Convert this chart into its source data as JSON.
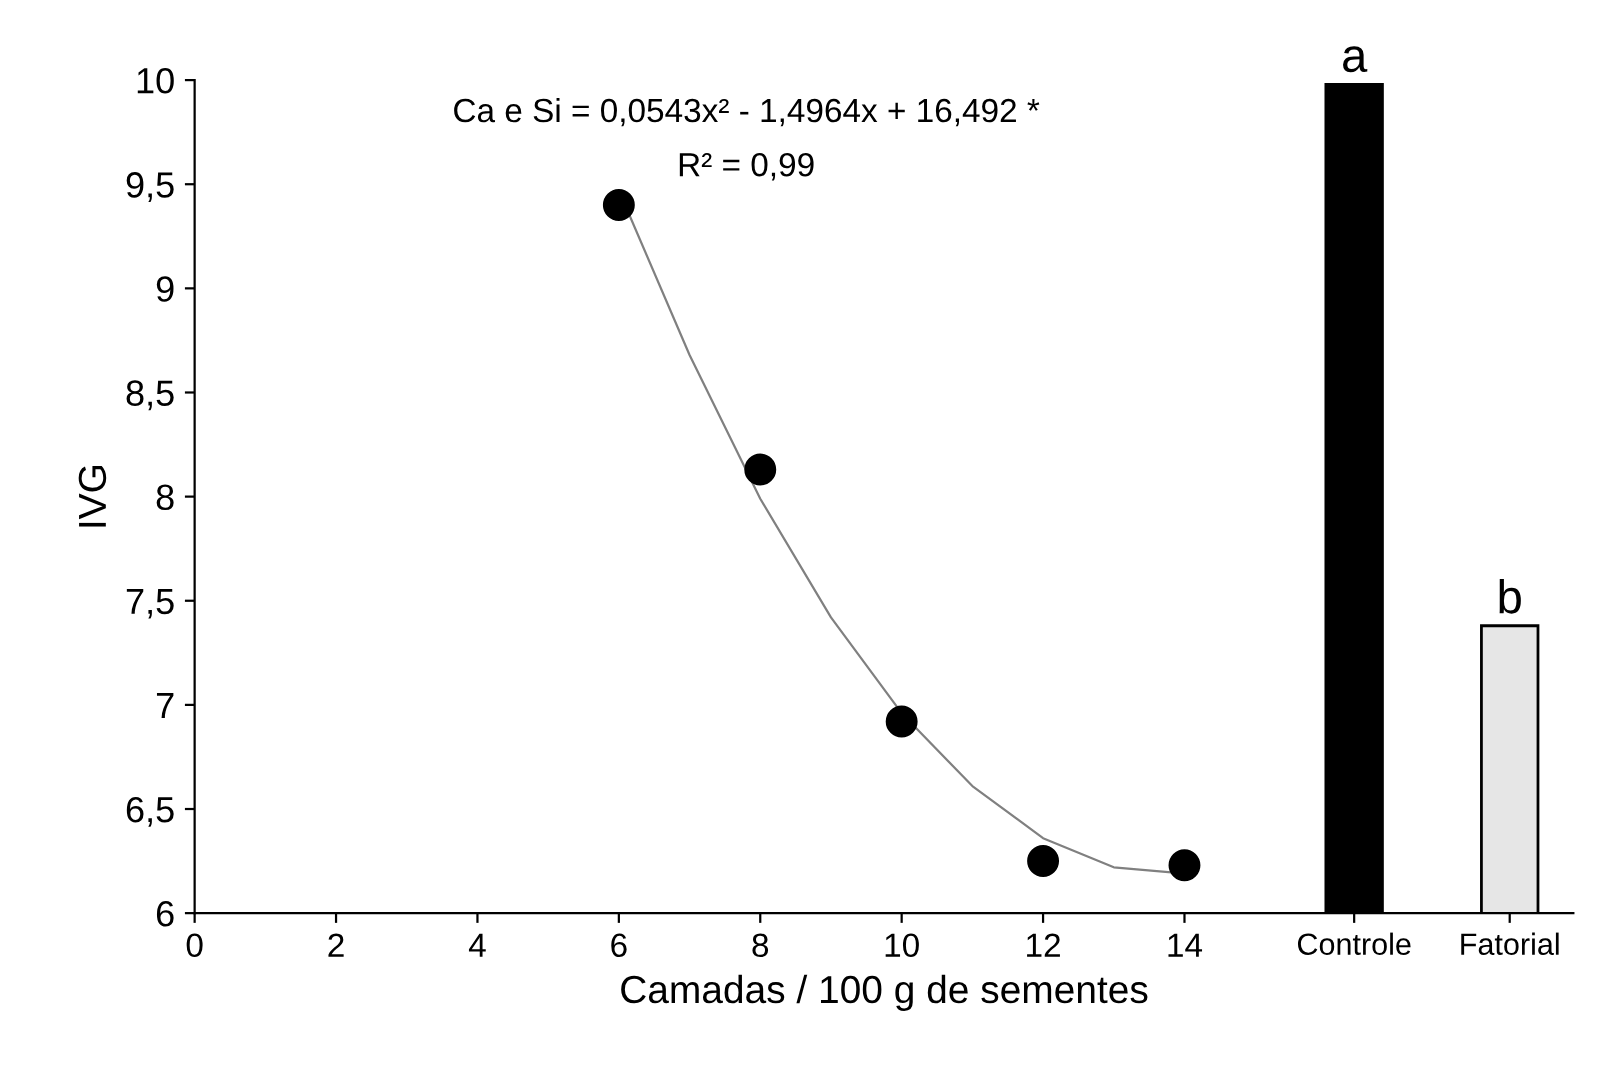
{
  "chart_data": {
    "type": "scatter",
    "xlabel": "Camadas / 100 g de sementes",
    "ylabel": "IVG",
    "xlim": [
      0,
      19.5
    ],
    "ylim": [
      6,
      10
    ],
    "grid": false,
    "xticks": [
      0,
      2,
      4,
      6,
      8,
      10,
      12,
      14,
      {
        "value": 16.4,
        "label": "Controle"
      },
      {
        "value": 18.6,
        "label": "Fatorial"
      }
    ],
    "yticks": [
      6,
      {
        "value": 6.5,
        "label": "6,5"
      },
      7,
      {
        "value": 7.5,
        "label": "7,5"
      },
      8,
      {
        "value": 8.5,
        "label": "8,5"
      },
      9,
      {
        "value": 9.5,
        "label": "9,5"
      },
      10
    ],
    "series": [
      {
        "type": "line",
        "x": [
          6,
          7,
          8,
          9,
          10,
          11,
          12,
          13,
          14
        ],
        "values": [
          9.47,
          8.68,
          7.99,
          7.42,
          6.96,
          6.61,
          6.36,
          6.22,
          6.19
        ],
        "color": "#808080",
        "marker": "none"
      },
      {
        "x": [
          6,
          8,
          10,
          12,
          14
        ],
        "values": [
          9.4,
          8.13,
          6.92,
          6.25,
          6.23
        ],
        "color": "#000000",
        "marker": "circle"
      },
      {
        "type": "bar",
        "x": [
          16.4,
          18.6
        ],
        "values": [
          9.98,
          7.38
        ],
        "colors": [
          "#000000",
          "#e6e6e6"
        ]
      }
    ],
    "annotations": [
      "Ca e Si = 0,0543x² - 1,4964x + 16,492 *",
      "R² = 0,99",
      {
        "text": "a",
        "x": 16.4,
        "y": 9.98
      },
      {
        "text": "b",
        "x": 18.6,
        "y": 7.38
      }
    ]
  }
}
